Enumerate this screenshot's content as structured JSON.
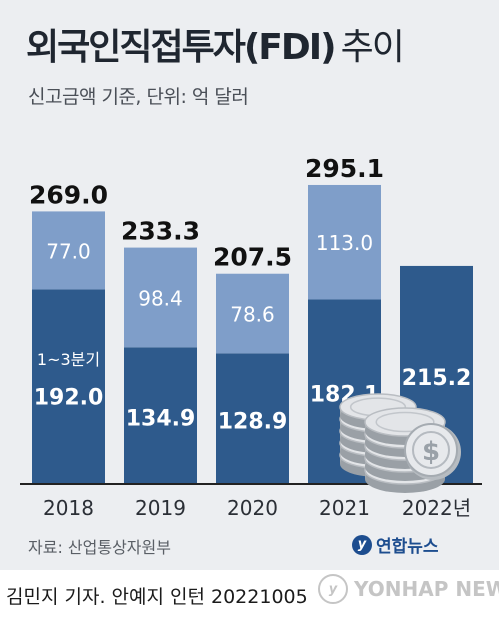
{
  "title": "외국인직접투자(FDI)",
  "title_suffix": "추이",
  "subtitle": "신고금액 기준, 단위: 억 달러",
  "source": "자료: 산업통상자원부",
  "logo_text": "연합뉴스",
  "byline": "김민지 기자. 안예지 인턴  20221005",
  "watermark": "YONHAP NEWS",
  "colors": {
    "bottom": "#2e5a8c",
    "top": "#7f9ec9",
    "background": "#eceef1",
    "baseline": "#222222"
  },
  "chart_data": {
    "type": "bar",
    "stacked": true,
    "categories": [
      "2018",
      "2019",
      "2020",
      "2021",
      "2022년"
    ],
    "series": [
      {
        "name": "1~3분기",
        "values": [
          192.0,
          134.9,
          128.9,
          182.1,
          215.2
        ]
      },
      {
        "name": "",
        "values": [
          77.0,
          98.4,
          78.6,
          113.0,
          null
        ]
      }
    ],
    "totals": [
      269.0,
      233.3,
      207.5,
      295.1,
      null
    ],
    "annotation": "1~3분기",
    "title": "외국인직접투자(FDI) 추이",
    "subtitle": "신고금액 기준, 단위: 억 달러",
    "ylim": [
      0,
      300
    ],
    "grid": false,
    "legend": "none"
  }
}
